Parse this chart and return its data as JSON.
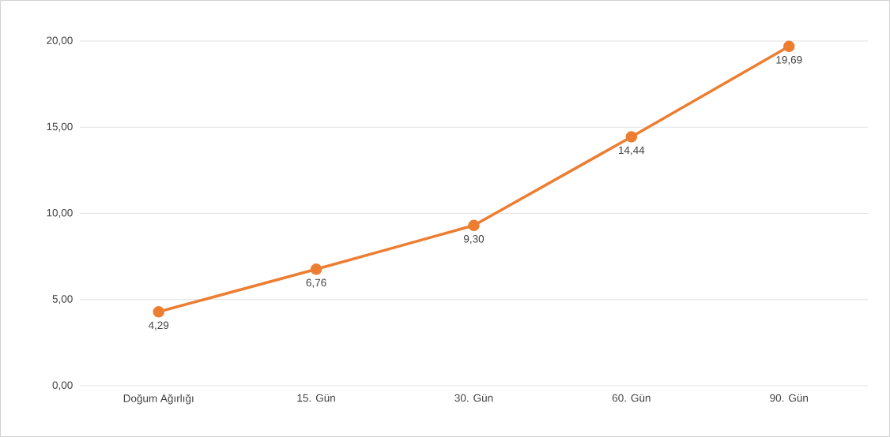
{
  "chart_data": {
    "type": "line",
    "categories": [
      "Doğum Ağırlığı",
      "15. Gün",
      "30. Gün",
      "60. Gün",
      "90. Gün"
    ],
    "series": [
      {
        "color": "#ed7d31",
        "values": [
          4.29,
          6.76,
          9.3,
          14.44,
          19.69
        ],
        "value_labels": [
          "4,29",
          "6,76",
          "9,30",
          "14,44",
          "19,69"
        ]
      }
    ],
    "ylim": [
      0,
      20
    ],
    "yticks": [
      {
        "value": 0,
        "label": "0,00"
      },
      {
        "value": 5,
        "label": "5,00"
      },
      {
        "value": 10,
        "label": "10,00"
      },
      {
        "value": 15,
        "label": "15,00"
      },
      {
        "value": 20,
        "label": "20,00"
      }
    ],
    "grid": "y",
    "marker": "circle",
    "line_style": "solid"
  }
}
